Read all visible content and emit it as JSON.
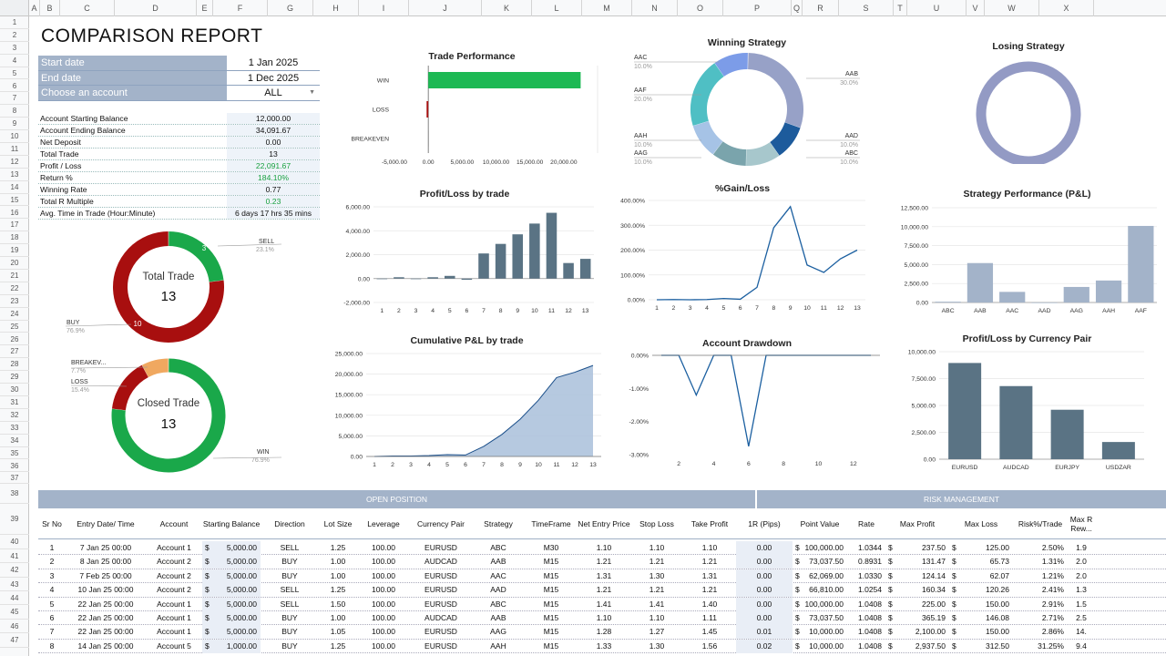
{
  "sheet": {
    "columns": [
      "A",
      "B",
      "C",
      "D",
      "E",
      "F",
      "G",
      "H",
      "I",
      "J",
      "K",
      "L",
      "M",
      "N",
      "O",
      "P",
      "Q",
      "R",
      "S",
      "T",
      "U",
      "V",
      "W",
      "X"
    ],
    "rows": [
      "1",
      "2",
      "3",
      "4",
      "5",
      "6",
      "7",
      "8",
      "9",
      "10",
      "11",
      "12",
      "13",
      "14",
      "15",
      "16",
      "17",
      "18",
      "19",
      "20",
      "21",
      "22",
      "23",
      "24",
      "25",
      "26",
      "27",
      "28",
      "29",
      "30",
      "31",
      "32",
      "33",
      "34",
      "35",
      "36",
      "37",
      "38",
      "39",
      "40",
      "41",
      "42",
      "43",
      "44",
      "45",
      "46",
      "47"
    ]
  },
  "report_title": "COMPARISON REPORT",
  "settings": [
    {
      "label": "Start date",
      "value": "1 Jan 2025"
    },
    {
      "label": "End date",
      "value": "1 Dec 2025"
    },
    {
      "label": "Choose an account",
      "value": "ALL"
    }
  ],
  "metrics": [
    {
      "label": "Account Starting Balance",
      "value": "12,000.00",
      "color": ""
    },
    {
      "label": "Account Ending Balance",
      "value": "34,091.67",
      "color": ""
    },
    {
      "label": "Net Deposit",
      "value": "0.00",
      "color": ""
    },
    {
      "label": "Total Trade",
      "value": "13",
      "color": ""
    },
    {
      "label": "Profit / Loss",
      "value": "22,091.67",
      "color": "green"
    },
    {
      "label": "Return %",
      "value": "184.10%",
      "color": "green"
    },
    {
      "label": "Winning Rate",
      "value": "0.77",
      "color": ""
    },
    {
      "label": "Total R Multiple",
      "value": "0.23",
      "color": "green"
    },
    {
      "label": "Avg. Time in Trade (Hour:Minute)",
      "value": "6 days 17 hrs 35 mins",
      "color": ""
    }
  ],
  "total_trade_donut": {
    "center_label": "Total Trade",
    "center_value": "13",
    "slices": [
      {
        "name": "SELL",
        "value": 3,
        "pct": "23.1%",
        "color": "#1aa84a"
      },
      {
        "name": "BUY",
        "value": 10,
        "pct": "76.9%",
        "color": "#a80f0f"
      }
    ]
  },
  "closed_trade_donut": {
    "center_label": "Closed Trade",
    "center_value": "13",
    "slices": [
      {
        "name": "WIN",
        "value": 10,
        "pct": "76.9%",
        "color": "#1aa84a"
      },
      {
        "name": "LOSS",
        "value": 2,
        "pct": "15.4%",
        "color": "#a80f0f"
      },
      {
        "name": "BREAKEV...",
        "value": 1,
        "pct": "7.7%",
        "color": "#f0a860"
      }
    ]
  },
  "chart_data": [
    {
      "id": "trade_performance",
      "type": "bar",
      "orientation": "horizontal",
      "title": "Trade Performance",
      "categories": [
        "WIN",
        "LOSS",
        "BREAKEVEN"
      ],
      "values": [
        22500,
        -250,
        0
      ],
      "xlim": [
        -5000,
        25000
      ],
      "xticks": [
        "-5,000.00",
        "0.00",
        "5,000.00",
        "10,000.00",
        "15,000.00",
        "20,000.00"
      ],
      "colors": [
        "#1db954",
        "#a80f0f",
        "#888888"
      ]
    },
    {
      "id": "winning_strategy",
      "type": "pie",
      "title": "Winning Strategy",
      "slices": [
        {
          "name": "AAB",
          "pct": "30.0%",
          "value": 30,
          "color": "#97a1c7"
        },
        {
          "name": "AAD",
          "pct": "10.0%",
          "value": 10,
          "color": "#1d5b9c"
        },
        {
          "name": "ABC",
          "pct": "10.0%",
          "value": 10,
          "color": "#a7c7cc"
        },
        {
          "name": "AAG",
          "pct": "10.0%",
          "value": 10,
          "color": "#7aa4ac"
        },
        {
          "name": "AAH",
          "pct": "10.0%",
          "value": 10,
          "color": "#a6c3e6"
        },
        {
          "name": "AAF",
          "pct": "20.0%",
          "value": 20,
          "color": "#4fbfc4"
        },
        {
          "name": "AAC",
          "pct": "10.0%",
          "value": 10,
          "color": "#7c9ce8"
        }
      ]
    },
    {
      "id": "losing_strategy",
      "type": "pie",
      "title": "Losing Strategy",
      "slices": [
        {
          "name": "",
          "value": 100,
          "color": "#939ac4"
        }
      ]
    },
    {
      "id": "profit_loss_by_trade",
      "type": "bar",
      "title": "Profit/Loss by trade",
      "categories": [
        "1",
        "2",
        "3",
        "4",
        "5",
        "6",
        "7",
        "8",
        "9",
        "10",
        "11",
        "12",
        "13"
      ],
      "values": [
        0,
        112.5,
        0,
        112.5,
        225,
        -100,
        2100,
        2900,
        3700,
        4600,
        5500,
        1300,
        1650
      ],
      "ylim": [
        -2000,
        6000
      ],
      "yticks": [
        "-2,000.00",
        "0.00",
        "2,000.00",
        "4,000.00",
        "6,000.00"
      ],
      "color": "#5a7384"
    },
    {
      "id": "gain_loss",
      "type": "line",
      "title": "%Gain/Loss",
      "x": [
        "1",
        "2",
        "3",
        "4",
        "5",
        "6",
        "7",
        "8",
        "9",
        "10",
        "11",
        "12",
        "13"
      ],
      "values": [
        0,
        1,
        0,
        1,
        5,
        2,
        50,
        290,
        375,
        140,
        110,
        165,
        200
      ],
      "ylim": [
        0,
        400
      ],
      "yticks": [
        "0.00%",
        "100.00%",
        "200.00%",
        "300.00%",
        "400.00%"
      ],
      "color": "#1b5fa0"
    },
    {
      "id": "strategy_performance",
      "type": "bar",
      "title": "Strategy Performance (P&L)",
      "categories": [
        "ABC",
        "AAB",
        "AAC",
        "AAD",
        "AAG",
        "AAH",
        "AAF"
      ],
      "values": [
        100,
        5200,
        1400,
        0,
        2050,
        2900,
        10100
      ],
      "ylim": [
        0,
        12500
      ],
      "yticks": [
        "0.00",
        "2,500.00",
        "5,000.00",
        "7,500.00",
        "10,000.00",
        "12,500.00"
      ],
      "color": "#a3b3c9"
    },
    {
      "id": "cumulative_pl",
      "type": "area",
      "title": "Cumulative P&L by trade",
      "x": [
        "1",
        "2",
        "3",
        "4",
        "5",
        "6",
        "7",
        "8",
        "9",
        "10",
        "11",
        "12",
        "13"
      ],
      "values": [
        0,
        112,
        112,
        225,
        450,
        350,
        2450,
        5350,
        9050,
        13650,
        19150,
        20450,
        22100
      ],
      "ylim": [
        0,
        25000
      ],
      "yticks": [
        "0.00",
        "5,000.00",
        "10,000.00",
        "15,000.00",
        "20,000.00",
        "25,000.00"
      ],
      "color": "#a9c0da",
      "line_color": "#1b4f8a"
    },
    {
      "id": "account_drawdown",
      "type": "line",
      "title": "Account Drawdown",
      "x": [
        1,
        2,
        3,
        4,
        5,
        6,
        7,
        8,
        9,
        10,
        11,
        12,
        13
      ],
      "xticks": [
        "2",
        "4",
        "6",
        "8",
        "10",
        "12"
      ],
      "values": [
        0,
        0,
        -1.2,
        0,
        0,
        -2.75,
        0,
        0,
        0,
        0,
        0,
        0,
        0
      ],
      "ylim": [
        -3,
        0
      ],
      "yticks": [
        "0.00%",
        "-1.00%",
        "-2.00%",
        "-3.00%"
      ],
      "color": "#1b5fa0"
    },
    {
      "id": "pl_by_currency",
      "type": "bar",
      "title": "Profit/Loss by Currency Pair",
      "categories": [
        "EURUSD",
        "AUDCAD",
        "EURJPY",
        "USDZAR"
      ],
      "values": [
        8950,
        6800,
        4600,
        1600
      ],
      "ylim": [
        0,
        10000
      ],
      "yticks": [
        "0.00",
        "2,500.00",
        "5,000.00",
        "7,500.00",
        "10,000.00"
      ],
      "color": "#5a7384"
    }
  ],
  "table": {
    "group_open": "OPEN POSITION",
    "group_risk": "RISK MANAGEMENT",
    "headers": [
      "Sr No",
      "Entry Date/ Time",
      "Account",
      "Starting Balance",
      "Direction",
      "Lot Size",
      "Leverage",
      "Currency Pair",
      "Strategy",
      "TimeFrame",
      "Net Entry Price",
      "Stop Loss",
      "Take Profit",
      "1R (Pips)",
      "Point Value",
      "Rate",
      "Max Profit",
      "Max Loss",
      "Risk%/Trade",
      "Max R Rew..."
    ],
    "rows": [
      [
        "1",
        "7 Jan 25 00:00",
        "Account 1",
        "5,000.00",
        "SELL",
        "1.25",
        "100.00",
        "EURUSD",
        "ABC",
        "M30",
        "1.10",
        "1.10",
        "1.10",
        "0.00",
        "100,000.00",
        "1.0344",
        "237.50",
        "125.00",
        "2.50%",
        "1.9"
      ],
      [
        "2",
        "8 Jan 25 00:00",
        "Account 2",
        "5,000.00",
        "BUY",
        "1.00",
        "100.00",
        "AUDCAD",
        "AAB",
        "M15",
        "1.21",
        "1.21",
        "1.21",
        "0.00",
        "73,037.50",
        "0.8931",
        "131.47",
        "65.73",
        "1.31%",
        "2.0"
      ],
      [
        "3",
        "7 Feb 25 00:00",
        "Account 2",
        "5,000.00",
        "BUY",
        "1.00",
        "100.00",
        "EURUSD",
        "AAC",
        "M15",
        "1.31",
        "1.30",
        "1.31",
        "0.00",
        "62,069.00",
        "1.0330",
        "124.14",
        "62.07",
        "1.21%",
        "2.0"
      ],
      [
        "4",
        "10 Jan 25 00:00",
        "Account 2",
        "5,000.00",
        "SELL",
        "1.25",
        "100.00",
        "EURUSD",
        "AAD",
        "M15",
        "1.21",
        "1.21",
        "1.21",
        "0.00",
        "66,810.00",
        "1.0254",
        "160.34",
        "120.26",
        "2.41%",
        "1.3"
      ],
      [
        "5",
        "22 Jan 25 00:00",
        "Account 1",
        "5,000.00",
        "SELL",
        "1.50",
        "100.00",
        "EURUSD",
        "ABC",
        "M15",
        "1.41",
        "1.41",
        "1.40",
        "0.00",
        "100,000.00",
        "1.0408",
        "225.00",
        "150.00",
        "2.91%",
        "1.5"
      ],
      [
        "6",
        "22 Jan 25 00:00",
        "Account 1",
        "5,000.00",
        "BUY",
        "1.00",
        "100.00",
        "AUDCAD",
        "AAB",
        "M15",
        "1.10",
        "1.10",
        "1.11",
        "0.00",
        "73,037.50",
        "1.0408",
        "365.19",
        "146.08",
        "2.71%",
        "2.5"
      ],
      [
        "7",
        "22 Jan 25 00:00",
        "Account 1",
        "5,000.00",
        "BUY",
        "1.05",
        "100.00",
        "EURUSD",
        "AAG",
        "M15",
        "1.28",
        "1.27",
        "1.45",
        "0.01",
        "10,000.00",
        "1.0408",
        "2,100.00",
        "150.00",
        "2.86%",
        "14."
      ],
      [
        "8",
        "14 Jan 25 00:00",
        "Account 5",
        "1,000.00",
        "BUY",
        "1.25",
        "100.00",
        "EURUSD",
        "AAH",
        "M15",
        "1.33",
        "1.30",
        "1.56",
        "0.02",
        "10,000.00",
        "1.0408",
        "2,937.50",
        "312.50",
        "31.25%",
        "9.4"
      ]
    ]
  }
}
